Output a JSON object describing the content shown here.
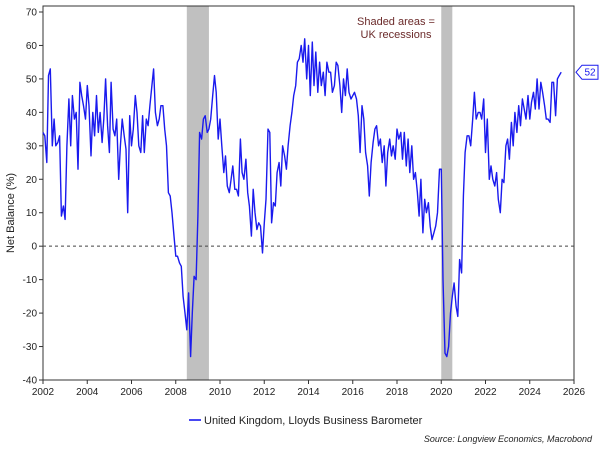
{
  "chart_data": {
    "type": "line",
    "title": "",
    "xlabel": "",
    "ylabel": "Net Balance (%)",
    "xlim": [
      2002,
      2026
    ],
    "ylim": [
      -40,
      70
    ],
    "x_ticks": [
      "2002",
      "2004",
      "2006",
      "2008",
      "2010",
      "2012",
      "2014",
      "2016",
      "2018",
      "2020",
      "2022",
      "2024",
      "2026"
    ],
    "y_ticks": [
      "70",
      "60",
      "50",
      "40",
      "30",
      "20",
      "10",
      "0",
      "-10",
      "-20",
      "-30",
      "-40"
    ],
    "grid": false,
    "zero_line": "dashed",
    "legend_position": "bottom",
    "annotation": [
      "Shaded areas =",
      "UK recessions"
    ],
    "source": "Source: Longview Economics, Macrobond",
    "end_value_label": "52",
    "colors": {
      "series": "#1a1aee",
      "recession": "#c0c0c0"
    },
    "recessions": [
      [
        2008.5,
        2009.5
      ],
      [
        2020.0,
        2020.5
      ]
    ],
    "series": [
      {
        "name": "United Kingdom, Lloyds Business Barometer",
        "points": [
          [
            2002.0,
            34
          ],
          [
            2002.08,
            33
          ],
          [
            2002.17,
            25
          ],
          [
            2002.25,
            51
          ],
          [
            2002.33,
            53
          ],
          [
            2002.42,
            30
          ],
          [
            2002.5,
            38
          ],
          [
            2002.58,
            30
          ],
          [
            2002.67,
            31
          ],
          [
            2002.75,
            33
          ],
          [
            2002.83,
            9
          ],
          [
            2002.92,
            12
          ],
          [
            2003.0,
            8
          ],
          [
            2003.08,
            30
          ],
          [
            2003.17,
            44
          ],
          [
            2003.25,
            30
          ],
          [
            2003.33,
            45
          ],
          [
            2003.42,
            38
          ],
          [
            2003.5,
            40
          ],
          [
            2003.58,
            23
          ],
          [
            2003.67,
            49
          ],
          [
            2003.75,
            45
          ],
          [
            2003.83,
            42
          ],
          [
            2003.92,
            38
          ],
          [
            2004.0,
            48
          ],
          [
            2004.08,
            42
          ],
          [
            2004.17,
            27
          ],
          [
            2004.25,
            40
          ],
          [
            2004.33,
            33
          ],
          [
            2004.42,
            45
          ],
          [
            2004.5,
            34
          ],
          [
            2004.58,
            40
          ],
          [
            2004.67,
            31
          ],
          [
            2004.75,
            38
          ],
          [
            2004.83,
            50
          ],
          [
            2004.92,
            36
          ],
          [
            2005.0,
            28
          ],
          [
            2005.08,
            49
          ],
          [
            2005.17,
            35
          ],
          [
            2005.25,
            33
          ],
          [
            2005.33,
            38
          ],
          [
            2005.42,
            20
          ],
          [
            2005.5,
            30
          ],
          [
            2005.58,
            38
          ],
          [
            2005.67,
            33
          ],
          [
            2005.75,
            29
          ],
          [
            2005.83,
            10
          ],
          [
            2005.92,
            39
          ],
          [
            2006.0,
            30
          ],
          [
            2006.08,
            35
          ],
          [
            2006.17,
            45
          ],
          [
            2006.25,
            40
          ],
          [
            2006.33,
            30
          ],
          [
            2006.42,
            28
          ],
          [
            2006.5,
            39
          ],
          [
            2006.58,
            28
          ],
          [
            2006.67,
            38
          ],
          [
            2006.75,
            36
          ],
          [
            2006.83,
            42
          ],
          [
            2006.92,
            48
          ],
          [
            2007.0,
            53
          ],
          [
            2007.08,
            40
          ],
          [
            2007.17,
            36
          ],
          [
            2007.25,
            38
          ],
          [
            2007.33,
            42
          ],
          [
            2007.42,
            42
          ],
          [
            2007.5,
            35
          ],
          [
            2007.58,
            30
          ],
          [
            2007.67,
            16
          ],
          [
            2007.75,
            15
          ],
          [
            2007.83,
            10
          ],
          [
            2007.92,
            3
          ],
          [
            2008.0,
            -3
          ],
          [
            2008.08,
            -3
          ],
          [
            2008.17,
            -5
          ],
          [
            2008.25,
            -6
          ],
          [
            2008.33,
            -15
          ],
          [
            2008.42,
            -20
          ],
          [
            2008.5,
            -25
          ],
          [
            2008.58,
            -14
          ],
          [
            2008.67,
            -33
          ],
          [
            2008.75,
            -20
          ],
          [
            2008.83,
            -9
          ],
          [
            2008.92,
            -10
          ],
          [
            2009.0,
            9
          ],
          [
            2009.08,
            34
          ],
          [
            2009.17,
            32
          ],
          [
            2009.25,
            38
          ],
          [
            2009.33,
            39
          ],
          [
            2009.42,
            34
          ],
          [
            2009.5,
            35
          ],
          [
            2009.58,
            38
          ],
          [
            2009.67,
            45
          ],
          [
            2009.75,
            51
          ],
          [
            2009.83,
            46
          ],
          [
            2009.92,
            32
          ],
          [
            2010.0,
            38
          ],
          [
            2010.08,
            30
          ],
          [
            2010.17,
            22
          ],
          [
            2010.25,
            27
          ],
          [
            2010.33,
            18
          ],
          [
            2010.42,
            16
          ],
          [
            2010.5,
            20
          ],
          [
            2010.58,
            24
          ],
          [
            2010.67,
            17
          ],
          [
            2010.75,
            17
          ],
          [
            2010.83,
            15
          ],
          [
            2010.92,
            32
          ],
          [
            2011.0,
            22
          ],
          [
            2011.08,
            20
          ],
          [
            2011.17,
            26
          ],
          [
            2011.25,
            16
          ],
          [
            2011.33,
            12
          ],
          [
            2011.42,
            3
          ],
          [
            2011.5,
            17
          ],
          [
            2011.58,
            10
          ],
          [
            2011.67,
            5
          ],
          [
            2011.75,
            7
          ],
          [
            2011.83,
            6
          ],
          [
            2011.92,
            -2
          ],
          [
            2012.0,
            7
          ],
          [
            2012.08,
            14
          ],
          [
            2012.17,
            35
          ],
          [
            2012.25,
            34
          ],
          [
            2012.33,
            7
          ],
          [
            2012.42,
            13
          ],
          [
            2012.5,
            12
          ],
          [
            2012.58,
            22
          ],
          [
            2012.67,
            25
          ],
          [
            2012.75,
            18
          ],
          [
            2012.83,
            30
          ],
          [
            2012.92,
            27
          ],
          [
            2013.0,
            23
          ],
          [
            2013.08,
            30
          ],
          [
            2013.17,
            36
          ],
          [
            2013.25,
            40
          ],
          [
            2013.33,
            45
          ],
          [
            2013.42,
            48
          ],
          [
            2013.5,
            55
          ],
          [
            2013.58,
            56
          ],
          [
            2013.67,
            60
          ],
          [
            2013.75,
            55
          ],
          [
            2013.83,
            62
          ],
          [
            2013.92,
            50
          ],
          [
            2014.0,
            60
          ],
          [
            2014.08,
            45
          ],
          [
            2014.17,
            61
          ],
          [
            2014.25,
            48
          ],
          [
            2014.33,
            58
          ],
          [
            2014.42,
            46
          ],
          [
            2014.5,
            55
          ],
          [
            2014.58,
            48
          ],
          [
            2014.67,
            52
          ],
          [
            2014.75,
            45
          ],
          [
            2014.83,
            55
          ],
          [
            2014.92,
            52
          ],
          [
            2015.0,
            52
          ],
          [
            2015.08,
            46
          ],
          [
            2015.17,
            48
          ],
          [
            2015.25,
            55
          ],
          [
            2015.33,
            54
          ],
          [
            2015.42,
            48
          ],
          [
            2015.5,
            40
          ],
          [
            2015.58,
            50
          ],
          [
            2015.67,
            45
          ],
          [
            2015.75,
            53
          ],
          [
            2015.83,
            46
          ],
          [
            2015.92,
            44
          ],
          [
            2016.0,
            45
          ],
          [
            2016.08,
            46
          ],
          [
            2016.17,
            44
          ],
          [
            2016.25,
            39
          ],
          [
            2016.33,
            28
          ],
          [
            2016.42,
            42
          ],
          [
            2016.5,
            38
          ],
          [
            2016.58,
            28
          ],
          [
            2016.67,
            24
          ],
          [
            2016.75,
            15
          ],
          [
            2016.83,
            25
          ],
          [
            2016.92,
            31
          ],
          [
            2017.0,
            35
          ],
          [
            2017.08,
            36
          ],
          [
            2017.17,
            30
          ],
          [
            2017.25,
            32
          ],
          [
            2017.33,
            25
          ],
          [
            2017.42,
            30
          ],
          [
            2017.5,
            18
          ],
          [
            2017.58,
            28
          ],
          [
            2017.67,
            32
          ],
          [
            2017.75,
            27
          ],
          [
            2017.83,
            30
          ],
          [
            2017.92,
            26
          ],
          [
            2018.0,
            35
          ],
          [
            2018.08,
            32
          ],
          [
            2018.17,
            34
          ],
          [
            2018.25,
            26
          ],
          [
            2018.33,
            34
          ],
          [
            2018.42,
            24
          ],
          [
            2018.5,
            32
          ],
          [
            2018.58,
            22
          ],
          [
            2018.67,
            30
          ],
          [
            2018.75,
            20
          ],
          [
            2018.83,
            22
          ],
          [
            2018.92,
            16
          ],
          [
            2019.0,
            9
          ],
          [
            2019.08,
            20
          ],
          [
            2019.17,
            4
          ],
          [
            2019.25,
            14
          ],
          [
            2019.33,
            10
          ],
          [
            2019.42,
            13
          ],
          [
            2019.5,
            6
          ],
          [
            2019.58,
            2
          ],
          [
            2019.67,
            4
          ],
          [
            2019.75,
            6
          ],
          [
            2019.83,
            10
          ],
          [
            2019.92,
            23
          ],
          [
            2020.0,
            23
          ],
          [
            2020.08,
            -10
          ],
          [
            2020.17,
            -32
          ],
          [
            2020.25,
            -33
          ],
          [
            2020.33,
            -30
          ],
          [
            2020.42,
            -20
          ],
          [
            2020.5,
            -15
          ],
          [
            2020.58,
            -11
          ],
          [
            2020.67,
            -18
          ],
          [
            2020.75,
            -21
          ],
          [
            2020.83,
            -4
          ],
          [
            2020.92,
            -8
          ],
          [
            2021.0,
            15
          ],
          [
            2021.08,
            28
          ],
          [
            2021.17,
            33
          ],
          [
            2021.25,
            33
          ],
          [
            2021.33,
            30
          ],
          [
            2021.42,
            38
          ],
          [
            2021.5,
            46
          ],
          [
            2021.58,
            38
          ],
          [
            2021.67,
            40
          ],
          [
            2021.75,
            40
          ],
          [
            2021.83,
            38
          ],
          [
            2021.92,
            44
          ],
          [
            2022.0,
            28
          ],
          [
            2022.08,
            38
          ],
          [
            2022.17,
            20
          ],
          [
            2022.25,
            24
          ],
          [
            2022.33,
            20
          ],
          [
            2022.42,
            18
          ],
          [
            2022.5,
            22
          ],
          [
            2022.58,
            14
          ],
          [
            2022.67,
            10
          ],
          [
            2022.75,
            20
          ],
          [
            2022.83,
            19
          ],
          [
            2022.92,
            30
          ],
          [
            2023.0,
            32
          ],
          [
            2023.08,
            26
          ],
          [
            2023.17,
            37
          ],
          [
            2023.25,
            30
          ],
          [
            2023.33,
            40
          ],
          [
            2023.42,
            34
          ],
          [
            2023.5,
            42
          ],
          [
            2023.58,
            36
          ],
          [
            2023.67,
            44
          ],
          [
            2023.75,
            41
          ],
          [
            2023.83,
            38
          ],
          [
            2023.92,
            45
          ],
          [
            2024.0,
            38
          ],
          [
            2024.08,
            43
          ],
          [
            2024.17,
            46
          ],
          [
            2024.25,
            41
          ],
          [
            2024.33,
            50
          ],
          [
            2024.42,
            41
          ],
          [
            2024.5,
            49
          ],
          [
            2024.58,
            46
          ],
          [
            2024.67,
            42
          ],
          [
            2024.75,
            38
          ],
          [
            2024.83,
            38
          ],
          [
            2024.92,
            37
          ],
          [
            2025.0,
            49
          ],
          [
            2025.08,
            49
          ],
          [
            2025.17,
            39
          ],
          [
            2025.25,
            50
          ],
          [
            2025.33,
            51
          ],
          [
            2025.42,
            52
          ]
        ]
      }
    ]
  }
}
